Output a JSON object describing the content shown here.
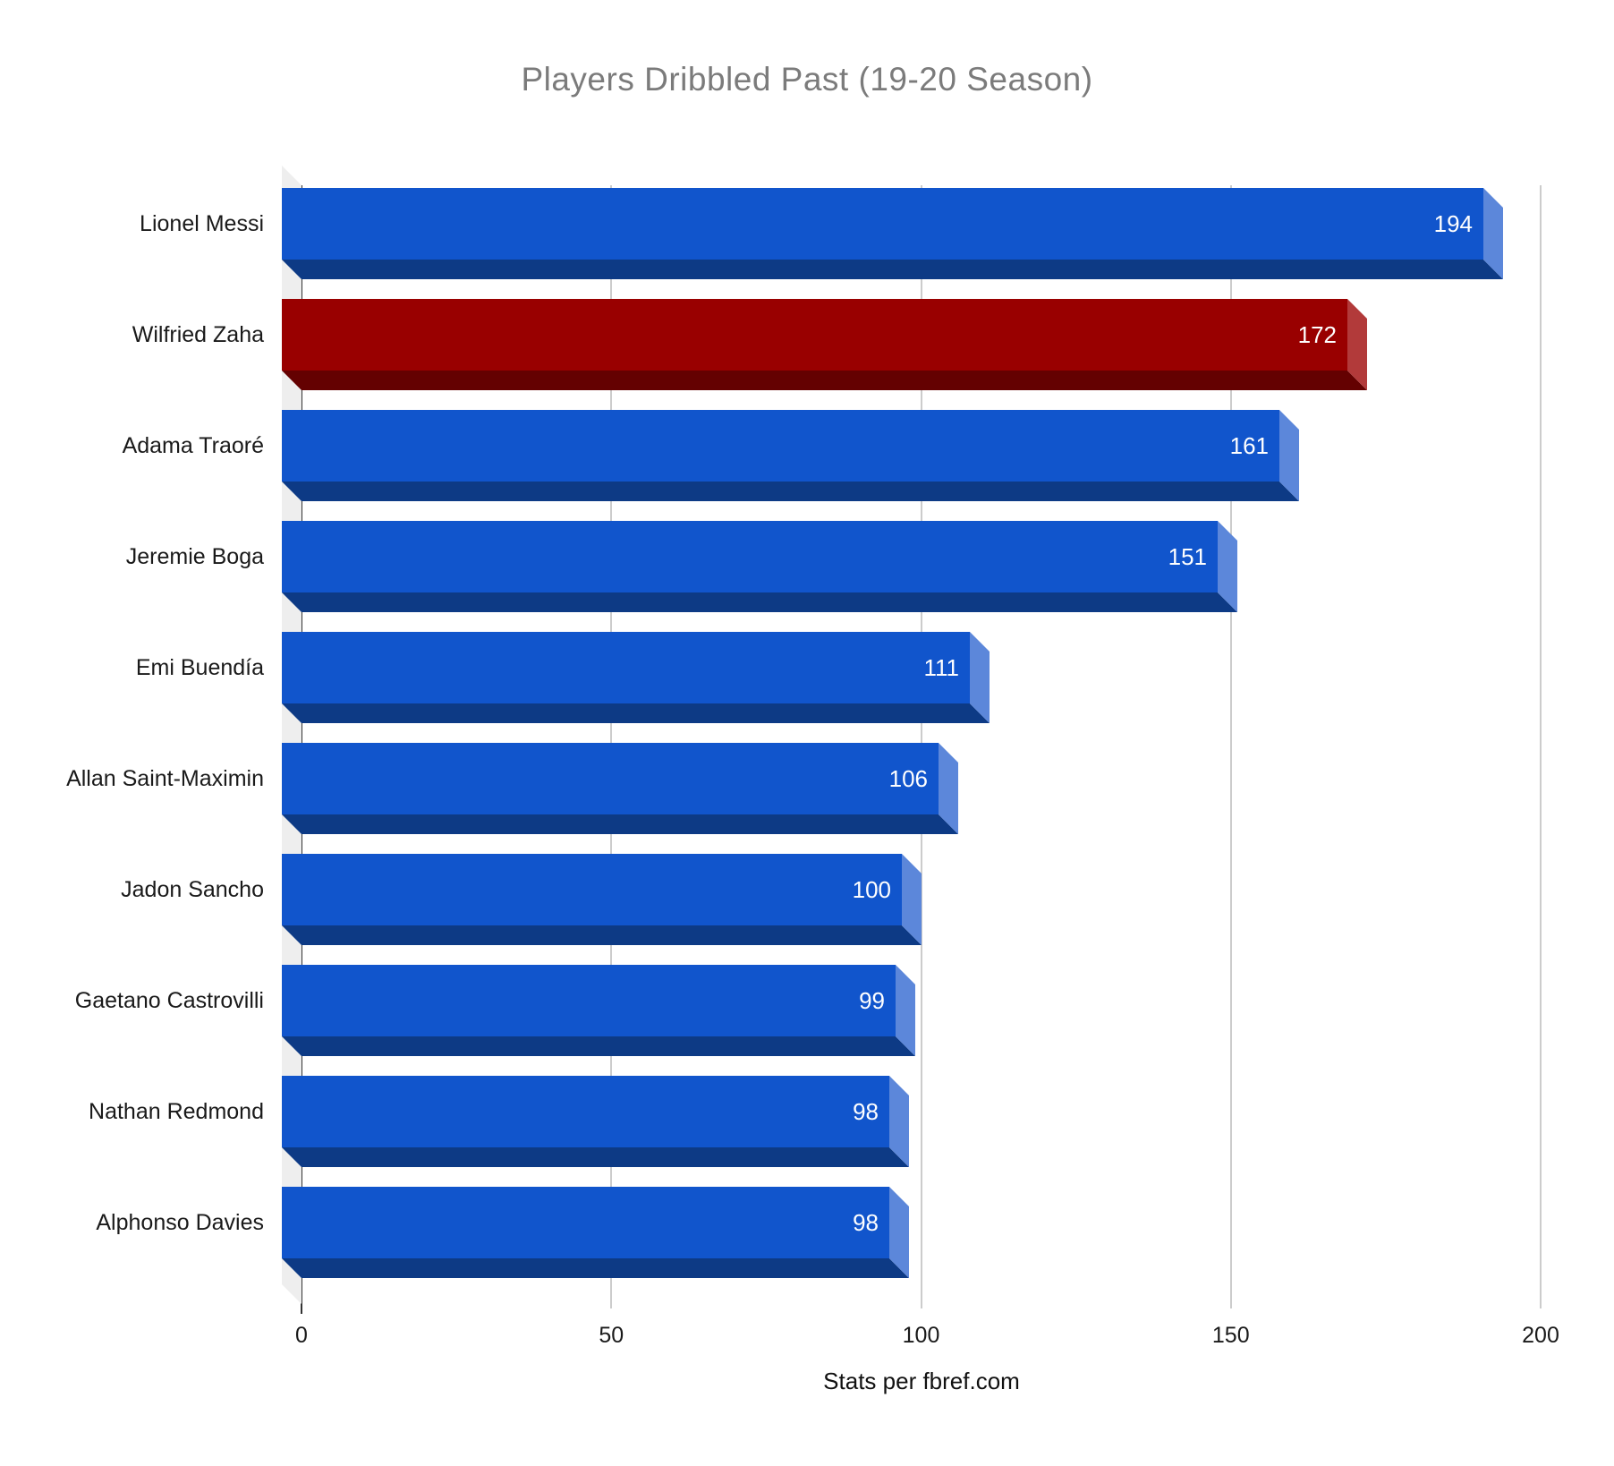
{
  "title": "Players Dribbled Past (19-20 Season)",
  "x_axis_title": "Stats per fbref.com",
  "colors": {
    "bar_default": "#1155cc",
    "bar_default_dark": "#0d3a85",
    "bar_default_light": "#5c87da",
    "bar_highlight": "#990000",
    "bar_highlight_dark": "#640101",
    "bar_highlight_light": "#b23a3a",
    "title_text": "#7b7b7b",
    "gridline": "#cccccc",
    "axis_line": "#333333",
    "axis_wall": "#eeeeee",
    "value_label": "#ffffff",
    "category_label": "#1a1a1a"
  },
  "chart_data": {
    "type": "bar",
    "orientation": "horizontal",
    "style": "3d",
    "title": "Players Dribbled Past (19-20 Season)",
    "xlabel": "Stats per fbref.com",
    "ylabel": "",
    "xlim": [
      0,
      200
    ],
    "x_ticks": [
      0,
      50,
      100,
      150,
      200
    ],
    "grid": true,
    "legend": "none",
    "value_labels_shown": true,
    "categories": [
      "Lionel Messi",
      "Wilfried Zaha",
      "Adama Traoré",
      "Jeremie Boga",
      "Emi Buendía",
      "Allan Saint-Maximin",
      "Jadon Sancho",
      "Gaetano Castrovilli",
      "Nathan Redmond",
      "Alphonso Davies"
    ],
    "values": [
      194,
      172,
      161,
      151,
      111,
      106,
      100,
      99,
      98,
      98
    ],
    "highlighted_category": "Wilfried Zaha"
  }
}
